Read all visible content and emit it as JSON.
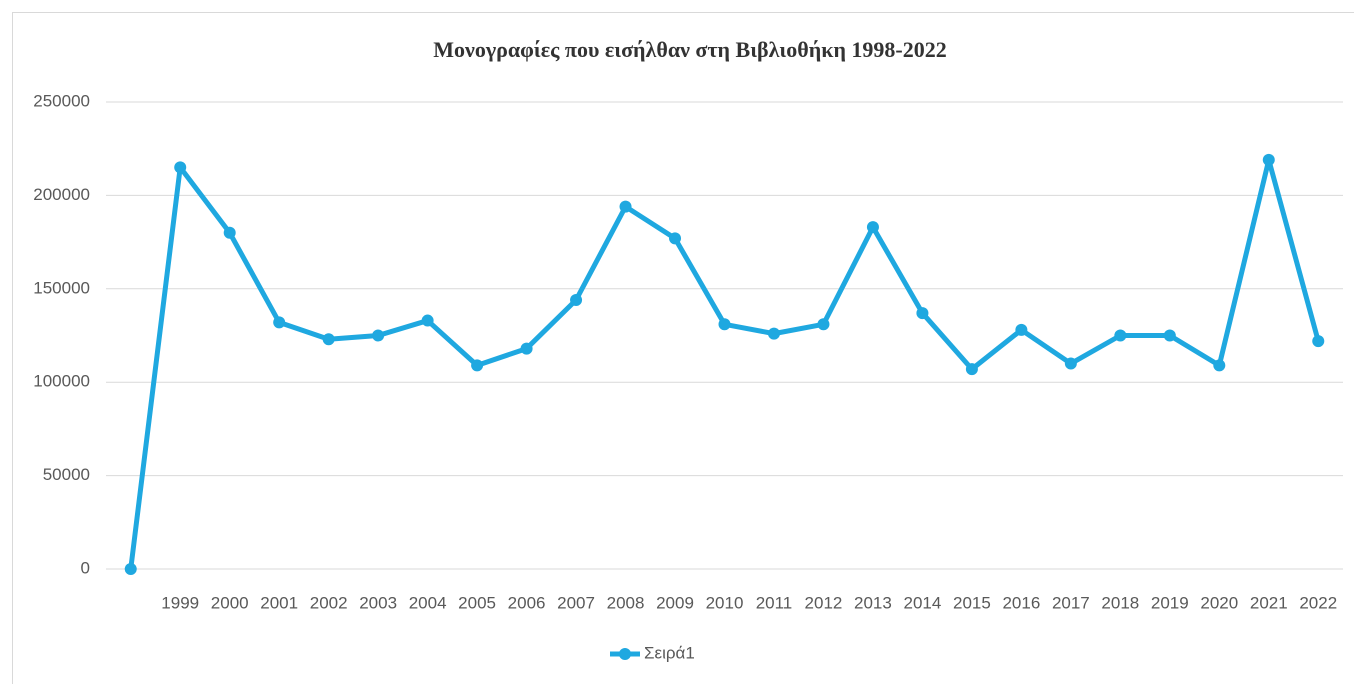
{
  "chart_data": {
    "type": "line",
    "title": "Μονογραφίες που εισήλθαν στη Βιβλιοθήκη 1998-2022",
    "categories": [
      null,
      "1999",
      "2000",
      "2001",
      "2002",
      "2003",
      "2004",
      "2005",
      "2006",
      "2007",
      "2008",
      "2009",
      "2010",
      "2011",
      "2012",
      "2013",
      "2014",
      "2015",
      "2016",
      "2017",
      "2018",
      "2019",
      "2020",
      "2021",
      "2022"
    ],
    "series": [
      {
        "name": "Σειρά1",
        "color": "#1fa8e0",
        "values": [
          0,
          215000,
          180000,
          132000,
          123000,
          125000,
          133000,
          109000,
          118000,
          144000,
          194000,
          177000,
          131000,
          126000,
          131000,
          183000,
          137000,
          107000,
          128000,
          110000,
          125000,
          125000,
          109000,
          219000,
          122000
        ]
      }
    ],
    "ylim": [
      0,
      250000
    ],
    "yticks": [
      0,
      50000,
      100000,
      150000,
      200000,
      250000
    ],
    "grid": true,
    "legend": "bottom"
  }
}
